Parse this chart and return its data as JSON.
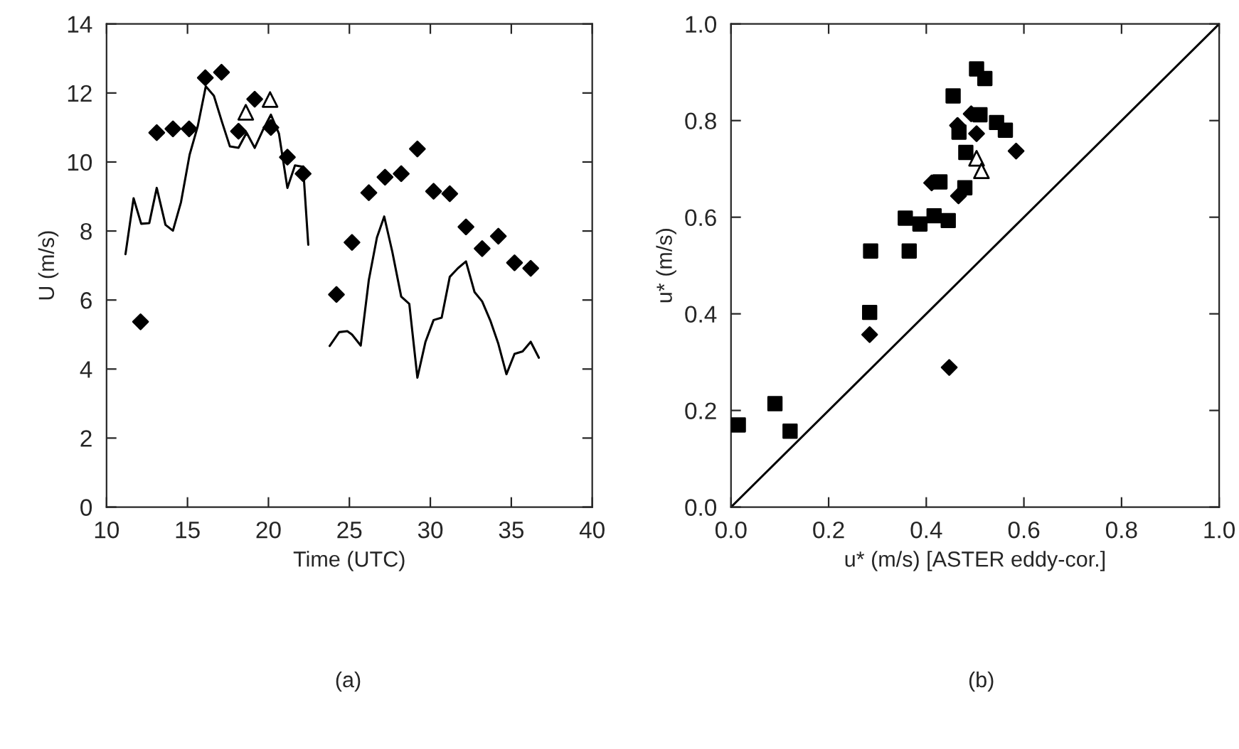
{
  "chart_data": [
    {
      "type": "scatter",
      "xlabel": "Time (UTC)",
      "ylabel": "U (m/s)",
      "annotations": [
        "(a)"
      ],
      "xlim": [
        10,
        40
      ],
      "xticks": [
        10,
        15,
        20,
        25,
        30,
        35,
        40
      ],
      "ylim": [
        0,
        14
      ],
      "yticks": [
        0,
        2,
        4,
        6,
        8,
        10,
        12,
        14
      ],
      "grid": false,
      "legend": false,
      "series": [
        {
          "type": "line",
          "color": "#000000",
          "marker": "none",
          "line_style": "solid",
          "x": [
            11.17,
            11.67,
            12.14,
            12.64,
            13.1,
            13.64,
            14.1,
            14.6,
            15.13,
            15.63,
            16.13,
            16.63,
            17.13,
            17.62,
            18.15,
            18.65,
            19.15,
            19.65,
            20.15,
            20.65,
            21.17,
            21.64,
            22.14,
            22.46,
            23.1,
            23.78,
            24.37,
            24.87,
            25.16,
            25.7,
            26.2,
            26.7,
            27.15,
            27.65,
            28.2,
            28.7,
            29.2,
            29.7,
            30.2,
            30.7,
            31.2,
            31.7,
            32.2,
            32.73,
            33.2,
            33.7,
            34.2,
            34.7,
            35.2,
            35.7,
            36.2,
            36.7
          ],
          "values": [
            7.33,
            8.95,
            8.21,
            8.23,
            9.25,
            8.18,
            8.01,
            8.84,
            10.21,
            11.03,
            12.19,
            11.92,
            11.16,
            10.45,
            10.41,
            10.85,
            10.41,
            10.92,
            11.37,
            10.82,
            9.25,
            9.9,
            9.86,
            7.6,
            null,
            4.67,
            5.07,
            5.1,
            5.0,
            4.68,
            6.58,
            7.81,
            8.42,
            7.4,
            6.1,
            5.89,
            3.75,
            4.79,
            5.42,
            5.49,
            6.67,
            6.92,
            7.12,
            6.23,
            5.96,
            5.41,
            4.73,
            3.85,
            4.44,
            4.51,
            4.79,
            4.33
          ]
        },
        {
          "color": "#000000",
          "marker": "diamond",
          "x": [
            12.1,
            13.1,
            14.1,
            15.1,
            16.1,
            17.1,
            18.15,
            19.15,
            20.15,
            21.17,
            22.14,
            24.2,
            25.16,
            26.2,
            27.2,
            28.2,
            29.2,
            30.2,
            31.2,
            32.2,
            33.2,
            34.2,
            35.2,
            36.2
          ],
          "values": [
            5.37,
            10.85,
            10.96,
            10.96,
            12.44,
            12.6,
            10.89,
            11.82,
            11.0,
            10.14,
            9.66,
            6.16,
            7.67,
            9.11,
            9.56,
            9.66,
            10.38,
            9.15,
            9.08,
            8.12,
            7.49,
            7.85,
            7.08,
            6.92
          ]
        },
        {
          "color": "#000000",
          "marker": "triangle",
          "x": [
            18.6,
            20.1
          ],
          "values": [
            11.44,
            11.81
          ]
        }
      ]
    },
    {
      "type": "scatter",
      "xlabel": "u* (m/s) [ASTER eddy-cor.]",
      "ylabel": "u* (m/s)",
      "annotations": [
        "(b)"
      ],
      "xlim": [
        0,
        1
      ],
      "xticks": [
        {
          "value": 0,
          "label": "0.0"
        },
        {
          "value": 0.2,
          "label": "0.2"
        },
        {
          "value": 0.4,
          "label": "0.4"
        },
        {
          "value": 0.6,
          "label": "0.6"
        },
        {
          "value": 0.8,
          "label": "0.8"
        },
        {
          "value": 1,
          "label": "1.0"
        }
      ],
      "ylim": [
        0,
        1
      ],
      "yticks": [
        {
          "value": 0,
          "label": "0.0"
        },
        {
          "value": 0.2,
          "label": "0.2"
        },
        {
          "value": 0.4,
          "label": "0.4"
        },
        {
          "value": 0.6,
          "label": "0.6"
        },
        {
          "value": 0.8,
          "label": "0.8"
        },
        {
          "value": 1,
          "label": "1.0"
        }
      ],
      "grid": false,
      "legend": false,
      "series": [
        {
          "type": "line",
          "color": "#000000",
          "marker": "none",
          "line_style": "solid",
          "x": [
            0,
            1
          ],
          "values": [
            0,
            1
          ]
        },
        {
          "color": "#000000",
          "marker": "square",
          "x": [
            0.503,
            0.52,
            0.455,
            0.51,
            0.544,
            0.562,
            0.467,
            0.481,
            0.479,
            0.428,
            0.357,
            0.387,
            0.416,
            0.445,
            0.286,
            0.365,
            0.284,
            0.09,
            0.015,
            0.121
          ],
          "values": [
            0.907,
            0.887,
            0.851,
            0.812,
            0.796,
            0.78,
            0.776,
            0.734,
            0.661,
            0.673,
            0.598,
            0.586,
            0.603,
            0.593,
            0.53,
            0.53,
            0.403,
            0.214,
            0.17,
            0.157
          ]
        },
        {
          "color": "#000000",
          "marker": "diamond",
          "x": [
            0.492,
            0.464,
            0.503,
            0.584,
            0.411,
            0.466,
            0.284,
            0.447
          ],
          "values": [
            0.814,
            0.79,
            0.773,
            0.737,
            0.671,
            0.644,
            0.357,
            0.289
          ]
        },
        {
          "color": "#000000",
          "marker": "triangle",
          "x": [
            0.503,
            0.513
          ],
          "values": [
            0.722,
            0.696
          ]
        }
      ]
    }
  ]
}
